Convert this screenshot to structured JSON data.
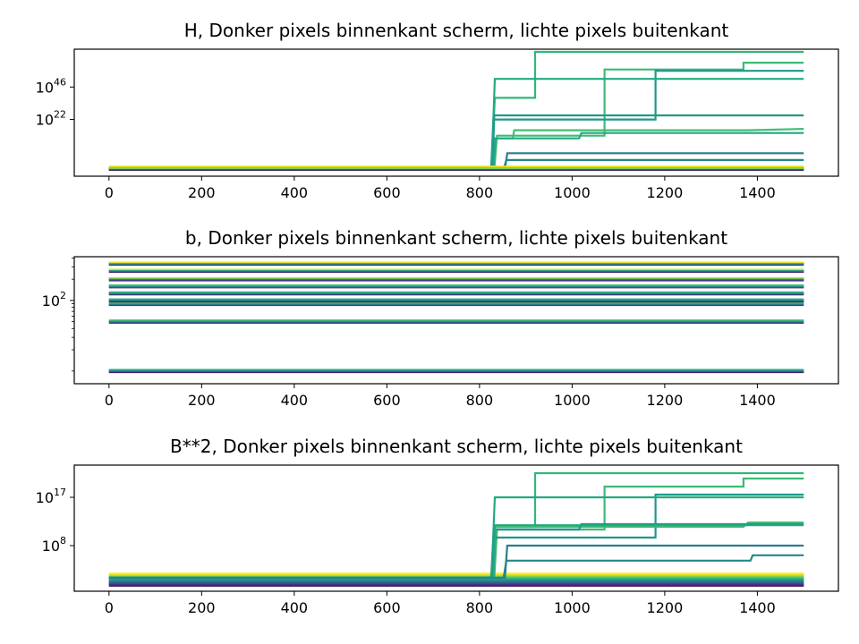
{
  "chart_data": [
    {
      "type": "line",
      "title": "H,  Donker pixels binnenkant scherm, lichte pixels buitenkant",
      "xlabel": "",
      "ylabel": "",
      "yscale": "log",
      "xlim": [
        -75,
        1575
      ],
      "ylim_log10": [
        -20,
        74
      ],
      "x_ticks": [
        0,
        200,
        400,
        600,
        800,
        1000,
        1200,
        1400
      ],
      "y_ticks": [
        {
          "base": "10",
          "exp": "22",
          "log10": 22
        },
        {
          "base": "10",
          "exp": "46",
          "log10": 46
        }
      ],
      "grid": false,
      "color_scale": [
        "#440154",
        "#3b528b",
        "#21918c",
        "#5ec962",
        "#fde725"
      ],
      "series": [
        {
          "color": "#32b67a",
          "steps": [
            [
              0,
              -15
            ],
            [
              826,
              -15
            ],
            [
              833,
              38
            ],
            [
              920,
              38
            ],
            [
              920,
              72
            ],
            [
              1500,
              72
            ]
          ]
        },
        {
          "color": "#3cbb75",
          "steps": [
            [
              0,
              -15
            ],
            [
              832,
              -15
            ],
            [
              838,
              10
            ],
            [
              1070,
              10
            ],
            [
              1070,
              59
            ],
            [
              1370,
              59
            ],
            [
              1370,
              64
            ],
            [
              1500,
              64
            ]
          ]
        },
        {
          "color": "#1f988b",
          "steps": [
            [
              0,
              -15
            ],
            [
              825,
              -15
            ],
            [
              830,
              22
            ],
            [
              1180,
              22
            ],
            [
              1180,
              58
            ],
            [
              1500,
              58
            ]
          ]
        },
        {
          "color": "#23a983",
          "steps": [
            [
              0,
              -15
            ],
            [
              826,
              -15
            ],
            [
              833,
              52
            ],
            [
              1500,
              52
            ]
          ]
        },
        {
          "color": "#40bd72",
          "steps": [
            [
              0,
              -15
            ],
            [
              830,
              -15
            ],
            [
              834,
              8
            ],
            [
              872,
              8
            ],
            [
              875,
              14
            ],
            [
              1380,
              14
            ],
            [
              1500,
              15
            ]
          ]
        },
        {
          "color": "#1f9a8a",
          "steps": [
            [
              0,
              -15
            ],
            [
              828,
              -15
            ],
            [
              832,
              25
            ],
            [
              1500,
              25
            ]
          ]
        },
        {
          "color": "#22a785",
          "steps": [
            [
              0,
              -15
            ],
            [
              830,
              -15
            ],
            [
              834,
              8
            ],
            [
              1015,
              8
            ],
            [
              1020,
              12
            ],
            [
              1500,
              12
            ]
          ]
        },
        {
          "color": "#277f8e",
          "steps": [
            [
              0,
              -15
            ],
            [
              855,
              -15
            ],
            [
              860,
              -3
            ],
            [
              1500,
              -3
            ]
          ]
        },
        {
          "color": "#25858e",
          "steps": [
            [
              0,
              -15
            ],
            [
              852,
              -15
            ],
            [
              858,
              -8
            ],
            [
              1500,
              -8
            ]
          ]
        },
        {
          "color": "#3b528b",
          "steps": [
            [
              0,
              -15
            ],
            [
              1500,
              -15
            ]
          ]
        },
        {
          "color": "#fde725",
          "steps": [
            [
              0,
              -13
            ],
            [
              1500,
              -13
            ]
          ]
        },
        {
          "color": "#7ad151",
          "steps": [
            [
              0,
              -14
            ],
            [
              1500,
              -14
            ]
          ]
        }
      ]
    },
    {
      "type": "line",
      "title": "b,  Donker pixels binnenkant scherm, lichte pixels buitenkant",
      "xlabel": "",
      "ylabel": "",
      "yscale": "log",
      "xlim": [
        -75,
        1575
      ],
      "ylim_log10": [
        0.82,
        2.62
      ],
      "x_ticks": [
        0,
        200,
        400,
        600,
        800,
        1000,
        1200,
        1400
      ],
      "y_ticks": [
        {
          "base": "10",
          "exp": "2",
          "log10": 2
        }
      ],
      "grid": false,
      "color_scale": [
        "#440154",
        "#3b528b",
        "#21918c",
        "#5ec962",
        "#fde725"
      ],
      "levels_log10": [
        1.0,
        1.7,
        1.95,
        2.0,
        2.1,
        2.2,
        2.3,
        2.42,
        2.52
      ]
    },
    {
      "type": "line",
      "title": "B**2,  Donker pixels binnenkant scherm, lichte pixels buitenkant",
      "xlabel": "",
      "ylabel": "",
      "yscale": "log",
      "xlim": [
        -75,
        1575
      ],
      "ylim_log10": [
        -0.5,
        23.0
      ],
      "x_ticks": [
        0,
        200,
        400,
        600,
        800,
        1000,
        1200,
        1400
      ],
      "y_ticks": [
        {
          "base": "10",
          "exp": "8",
          "log10": 8
        },
        {
          "base": "10",
          "exp": "17",
          "log10": 17
        }
      ],
      "grid": false,
      "color_scale": [
        "#440154",
        "#3b528b",
        "#21918c",
        "#5ec962",
        "#fde725"
      ],
      "series": [
        {
          "color": "#32b67a",
          "steps": [
            [
              0,
              2
            ],
            [
              826,
              2
            ],
            [
              833,
              11.5
            ],
            [
              920,
              11.5
            ],
            [
              920,
              21.5
            ],
            [
              1500,
              21.5
            ]
          ]
        },
        {
          "color": "#3cbb75",
          "steps": [
            [
              0,
              2
            ],
            [
              832,
              2
            ],
            [
              838,
              11
            ],
            [
              1070,
              11
            ],
            [
              1070,
              19
            ],
            [
              1370,
              19
            ],
            [
              1370,
              20.5
            ],
            [
              1500,
              20.5
            ]
          ]
        },
        {
          "color": "#1f988b",
          "steps": [
            [
              0,
              2
            ],
            [
              825,
              2
            ],
            [
              830,
              9.5
            ],
            [
              1180,
              9.5
            ],
            [
              1180,
              17.5
            ],
            [
              1500,
              17.5
            ]
          ]
        },
        {
          "color": "#23a983",
          "steps": [
            [
              0,
              2
            ],
            [
              826,
              2
            ],
            [
              833,
              17
            ],
            [
              1500,
              17
            ]
          ]
        },
        {
          "color": "#40bd72",
          "steps": [
            [
              0,
              2
            ],
            [
              830,
              2
            ],
            [
              834,
              11.5
            ],
            [
              1370,
              11.5
            ],
            [
              1380,
              12.3
            ],
            [
              1500,
              12.3
            ]
          ]
        },
        {
          "color": "#1f9a8a",
          "steps": [
            [
              0,
              2
            ],
            [
              828,
              2
            ],
            [
              832,
              11
            ],
            [
              1015,
              11
            ],
            [
              1020,
              12
            ],
            [
              1500,
              12
            ]
          ]
        },
        {
          "color": "#22a785",
          "steps": [
            [
              0,
              2
            ],
            [
              830,
              2
            ],
            [
              834,
              11.8
            ],
            [
              1500,
              11.8
            ]
          ]
        },
        {
          "color": "#277f8e",
          "steps": [
            [
              0,
              2
            ],
            [
              855,
              2
            ],
            [
              860,
              8
            ],
            [
              1500,
              8
            ]
          ]
        },
        {
          "color": "#25858e",
          "steps": [
            [
              0,
              2
            ],
            [
              852,
              2
            ],
            [
              858,
              5.2
            ],
            [
              1385,
              5.2
            ],
            [
              1390,
              6.2
            ],
            [
              1500,
              6.2
            ]
          ]
        }
      ],
      "band_log10": [
        0.5,
        2.8
      ]
    }
  ]
}
